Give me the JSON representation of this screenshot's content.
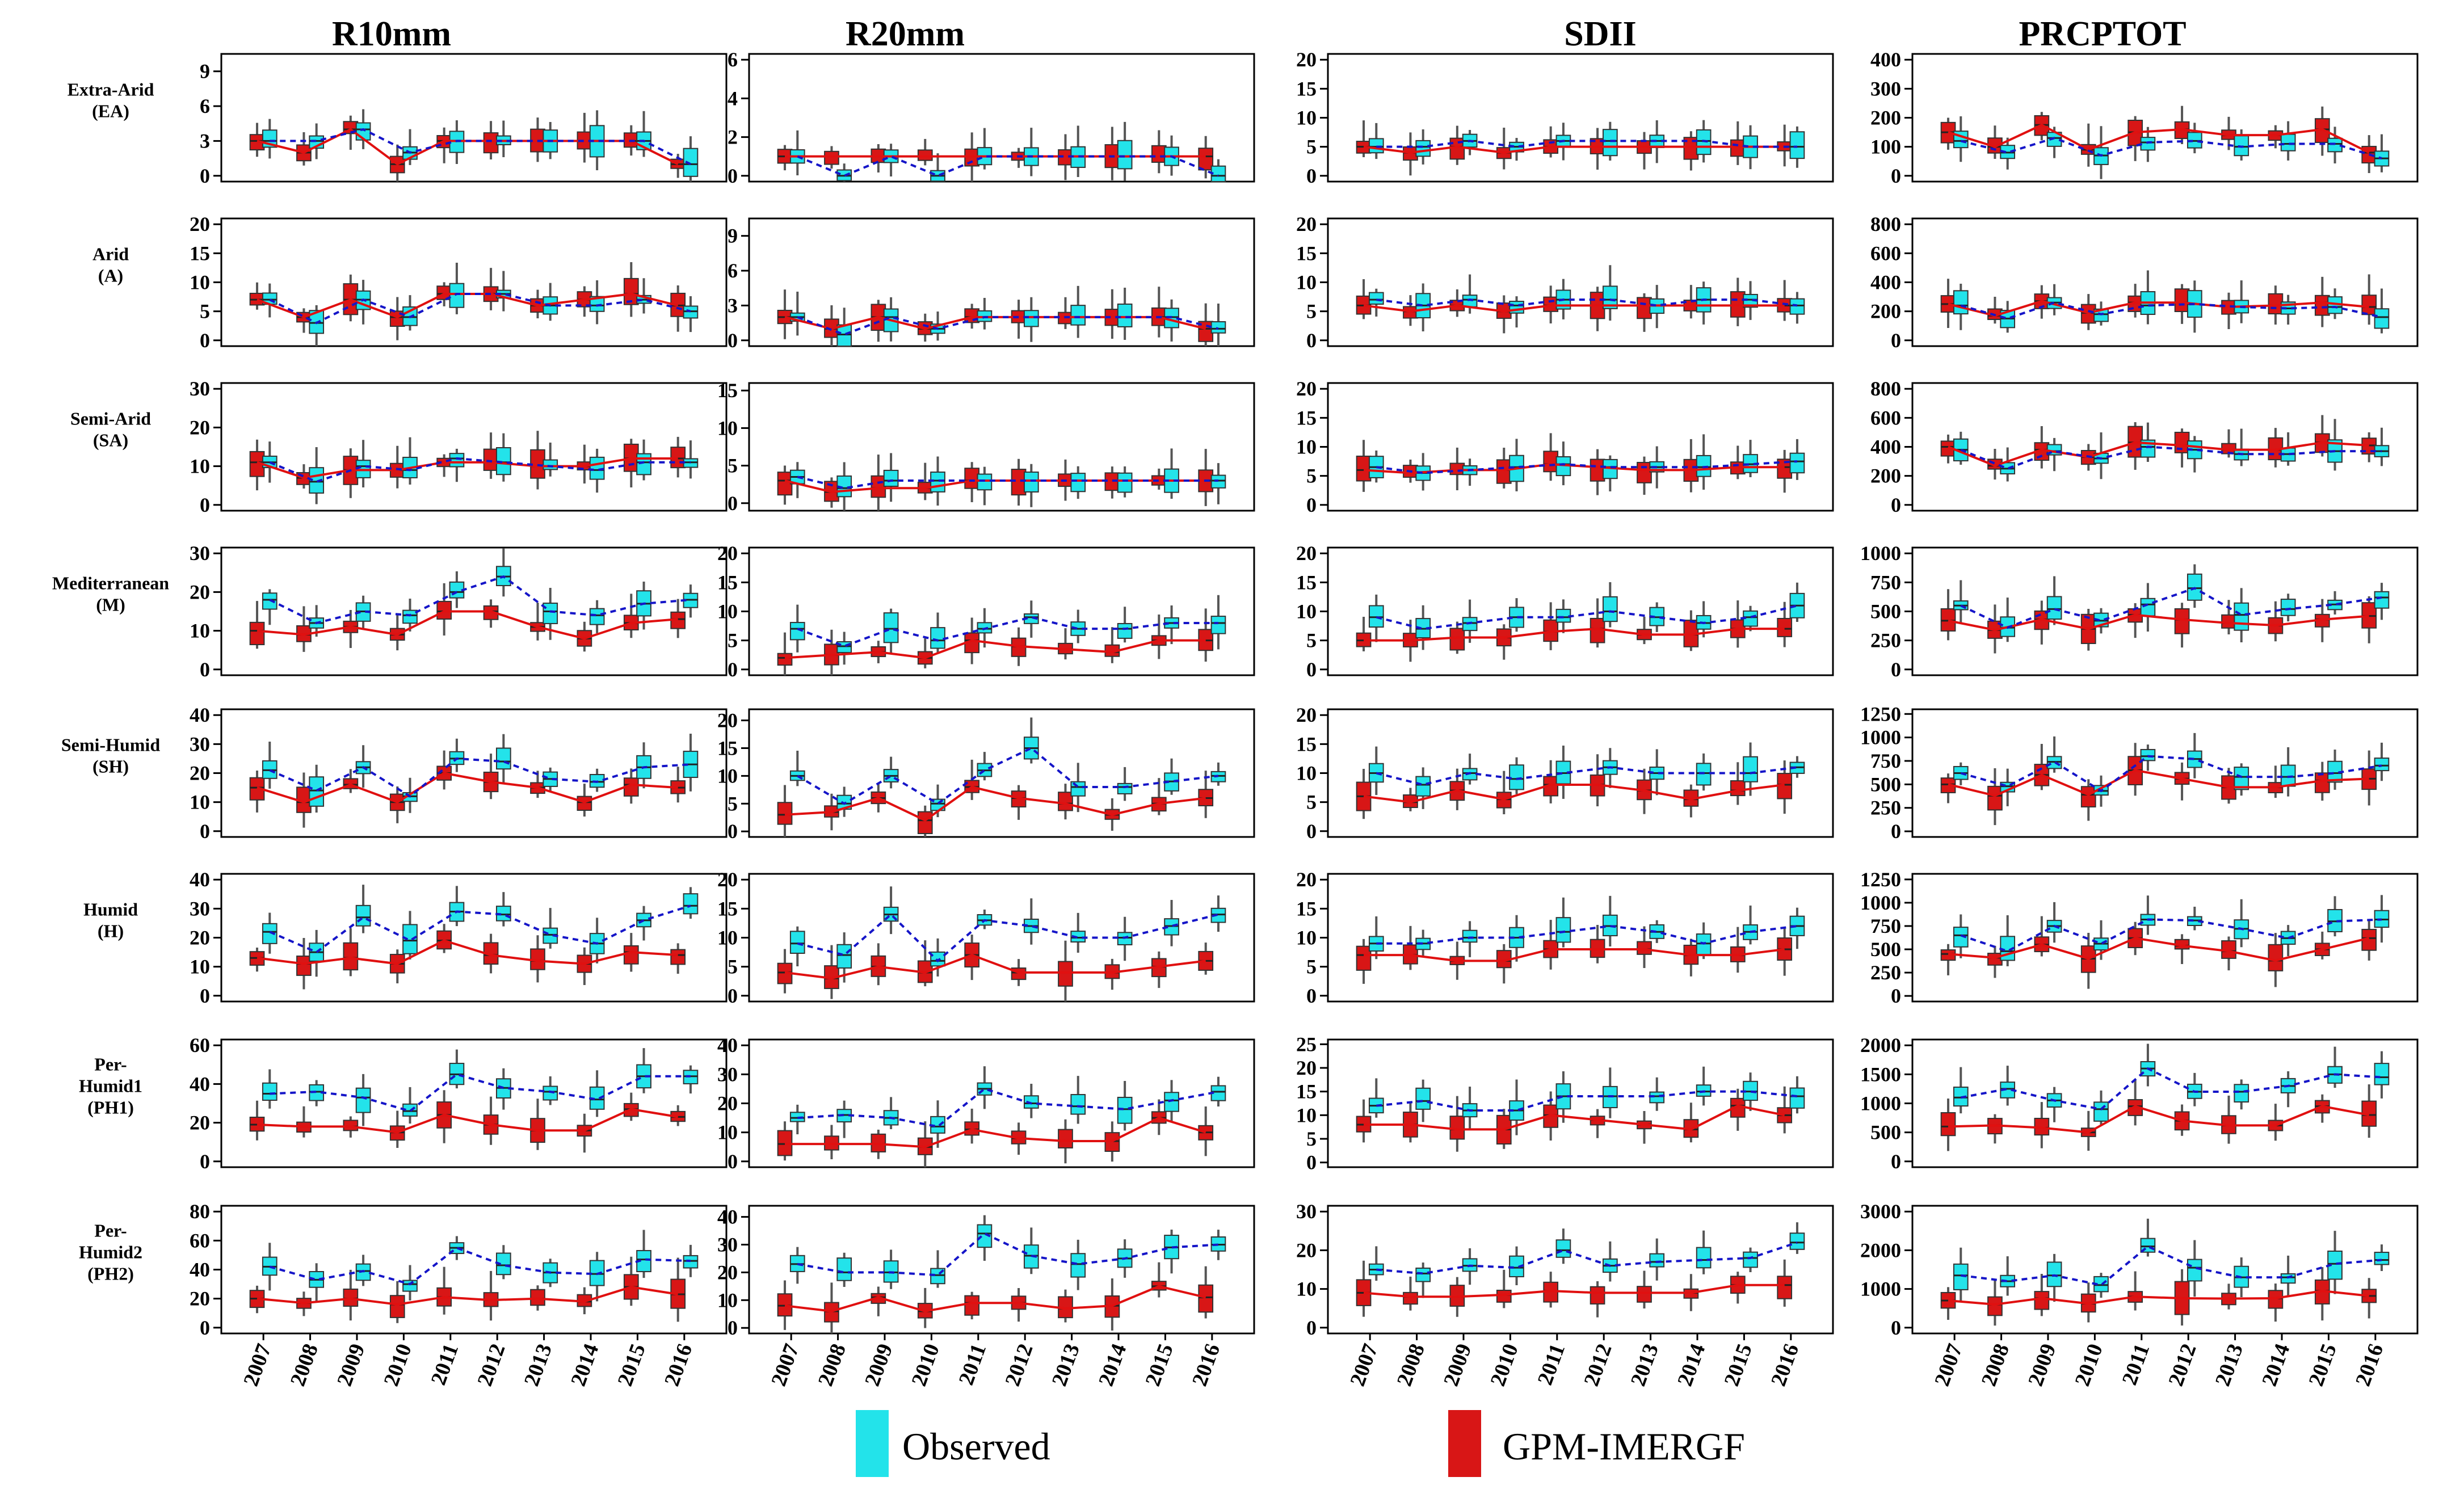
{
  "legend": {
    "observed": "Observed",
    "gpm": "GPM-IMERGF"
  },
  "colors": {
    "observed_fill": "#23e3ea",
    "gpm_fill": "#d81616",
    "observed_line": "#1515c8",
    "gpm_line": "#e01010",
    "whisker": "#555555"
  },
  "chart_data": {
    "type": "boxplot-grid",
    "years": [
      "2007",
      "2008",
      "2009",
      "2010",
      "2011",
      "2012",
      "2013",
      "2014",
      "2015",
      "2016"
    ],
    "columns": [
      {
        "title": "R10mm"
      },
      {
        "title": "R20mm"
      },
      {
        "title": "SDII"
      },
      {
        "title": "PRCPTOT"
      }
    ],
    "rows": [
      {
        "label": [
          "Extra-Arid",
          "(EA)"
        ]
      },
      {
        "label": [
          "Arid",
          "(A)"
        ]
      },
      {
        "label": [
          "Semi-Arid",
          "(SA)"
        ]
      },
      {
        "label": [
          "Mediterranean",
          "(M)"
        ]
      },
      {
        "label": [
          "Semi-Humid",
          "(SH)"
        ]
      },
      {
        "label": [
          "Humid",
          "(H)"
        ]
      },
      {
        "label": [
          "Per-",
          "Humid1",
          "(PH1)"
        ]
      },
      {
        "label": [
          "Per-",
          "Humid2",
          "(PH2)"
        ]
      }
    ],
    "axes": [
      [
        {
          "ticks": [
            0,
            3,
            6,
            9
          ],
          "ylim": [
            -0.5,
            10.5
          ]
        },
        {
          "ticks": [
            0,
            2,
            4,
            6
          ],
          "ylim": [
            -0.3,
            6.3
          ]
        },
        {
          "ticks": [
            0,
            5,
            10,
            15,
            20
          ],
          "ylim": [
            -1,
            21
          ]
        },
        {
          "ticks": [
            0,
            100,
            200,
            300,
            400
          ],
          "ylim": [
            -20,
            420
          ]
        }
      ],
      [
        {
          "ticks": [
            0,
            5,
            10,
            15,
            20
          ],
          "ylim": [
            -1,
            21
          ]
        },
        {
          "ticks": [
            0,
            3,
            6,
            9
          ],
          "ylim": [
            -0.5,
            10.5
          ]
        },
        {
          "ticks": [
            0,
            5,
            10,
            15,
            20
          ],
          "ylim": [
            -1,
            21
          ]
        },
        {
          "ticks": [
            0,
            200,
            400,
            600,
            800
          ],
          "ylim": [
            -40,
            840
          ]
        }
      ],
      [
        {
          "ticks": [
            0,
            10,
            20,
            30
          ],
          "ylim": [
            -1.5,
            31.5
          ]
        },
        {
          "ticks": [
            0,
            5,
            10,
            15
          ],
          "ylim": [
            -1,
            16
          ]
        },
        {
          "ticks": [
            0,
            5,
            10,
            15,
            20
          ],
          "ylim": [
            -1,
            21
          ]
        },
        {
          "ticks": [
            0,
            200,
            400,
            600,
            800
          ],
          "ylim": [
            -40,
            840
          ]
        }
      ],
      [
        {
          "ticks": [
            0,
            10,
            20,
            30
          ],
          "ylim": [
            -1.5,
            31.5
          ]
        },
        {
          "ticks": [
            0,
            5,
            10,
            15,
            20
          ],
          "ylim": [
            -1,
            21
          ]
        },
        {
          "ticks": [
            0,
            5,
            10,
            15,
            20
          ],
          "ylim": [
            -1,
            21
          ]
        },
        {
          "ticks": [
            0,
            250,
            500,
            750,
            1000
          ],
          "ylim": [
            -50,
            1050
          ]
        }
      ],
      [
        {
          "ticks": [
            0,
            10,
            20,
            30,
            40
          ],
          "ylim": [
            -2,
            42
          ]
        },
        {
          "ticks": [
            0,
            5,
            10,
            15,
            20
          ],
          "ylim": [
            -1,
            22
          ]
        },
        {
          "ticks": [
            0,
            5,
            10,
            15,
            20
          ],
          "ylim": [
            -1,
            21
          ]
        },
        {
          "ticks": [
            0,
            250,
            500,
            750,
            1000,
            1250
          ],
          "ylim": [
            -60,
            1300
          ]
        }
      ],
      [
        {
          "ticks": [
            0,
            10,
            20,
            30,
            40
          ],
          "ylim": [
            -2,
            42
          ]
        },
        {
          "ticks": [
            0,
            5,
            10,
            15,
            20
          ],
          "ylim": [
            -1,
            21
          ]
        },
        {
          "ticks": [
            0,
            5,
            10,
            15,
            20
          ],
          "ylim": [
            -1,
            21
          ]
        },
        {
          "ticks": [
            0,
            250,
            500,
            750,
            1000,
            1250
          ],
          "ylim": [
            -60,
            1310
          ]
        }
      ],
      [
        {
          "ticks": [
            0,
            20,
            40,
            60
          ],
          "ylim": [
            -3,
            63
          ]
        },
        {
          "ticks": [
            0,
            10,
            20,
            30,
            40
          ],
          "ylim": [
            -2,
            42
          ]
        },
        {
          "ticks": [
            0,
            5,
            10,
            15,
            20,
            25
          ],
          "ylim": [
            -1,
            26
          ]
        },
        {
          "ticks": [
            0,
            500,
            1000,
            1500,
            2000
          ],
          "ylim": [
            -100,
            2100
          ]
        }
      ],
      [
        {
          "ticks": [
            0,
            20,
            40,
            60,
            80
          ],
          "ylim": [
            -4,
            84
          ]
        },
        {
          "ticks": [
            0,
            10,
            20,
            30,
            40
          ],
          "ylim": [
            -2,
            44
          ]
        },
        {
          "ticks": [
            0,
            10,
            20,
            30
          ],
          "ylim": [
            -1.5,
            31.5
          ]
        },
        {
          "ticks": [
            0,
            1000,
            2000,
            3000
          ],
          "ylim": [
            -150,
            3150
          ]
        }
      ]
    ],
    "observed_medians": [
      [
        [
          3,
          3,
          4,
          2,
          3,
          3,
          3,
          3,
          3,
          1
        ],
        [
          1,
          0,
          1,
          0,
          1,
          1,
          1,
          1,
          1,
          0
        ],
        [
          5,
          5,
          6,
          5,
          6,
          6,
          6,
          6,
          5,
          5
        ],
        [
          120,
          80,
          130,
          70,
          115,
          120,
          100,
          110,
          110,
          60
        ]
      ],
      [
        [
          7,
          3,
          7,
          4,
          8,
          8,
          6,
          6,
          7,
          5
        ],
        [
          2,
          0.5,
          2,
          1,
          2,
          2,
          2,
          2,
          2,
          1
        ],
        [
          7,
          6,
          7,
          6,
          7,
          7,
          6,
          7,
          7,
          6
        ],
        [
          240,
          150,
          260,
          180,
          240,
          250,
          230,
          220,
          230,
          160
        ]
      ],
      [
        [
          11,
          6,
          10,
          9,
          12,
          11,
          10,
          9,
          11,
          11
        ],
        [
          3.5,
          2,
          3,
          3,
          3,
          3,
          3,
          3,
          3,
          3
        ],
        [
          6.5,
          5.5,
          6,
          6.5,
          7,
          6.5,
          6.5,
          6.5,
          7,
          7.5
        ],
        [
          380,
          250,
          370,
          320,
          400,
          380,
          350,
          350,
          370,
          370
        ]
      ],
      [
        [
          18,
          12,
          15,
          14,
          20,
          24,
          15,
          14,
          17,
          18
        ],
        [
          7,
          4,
          7,
          5,
          7,
          9,
          7,
          7,
          8,
          8
        ],
        [
          9,
          7,
          8,
          9,
          9,
          10,
          9,
          8,
          9,
          11
        ],
        [
          550,
          360,
          520,
          420,
          560,
          700,
          470,
          520,
          560,
          620
        ]
      ],
      [
        [
          21,
          14,
          22,
          12,
          25,
          24,
          18,
          17,
          22,
          23
        ],
        [
          10,
          5,
          10,
          5,
          11,
          15,
          8,
          8,
          9,
          10
        ],
        [
          10,
          8,
          10,
          9,
          10,
          11,
          10,
          10,
          10,
          11
        ],
        [
          620,
          480,
          740,
          430,
          800,
          770,
          580,
          580,
          620,
          700
        ]
      ],
      [
        [
          22,
          15,
          27,
          19,
          29,
          28,
          21,
          18,
          26,
          31
        ],
        [
          9,
          7,
          14,
          6,
          13,
          12,
          10,
          10,
          12,
          14
        ],
        [
          9,
          9,
          10,
          10,
          11,
          12,
          11,
          9,
          11,
          12
        ],
        [
          650,
          480,
          750,
          560,
          820,
          810,
          720,
          620,
          800,
          820
        ]
      ],
      [
        [
          35,
          36,
          33,
          26,
          45,
          38,
          36,
          32,
          44,
          44
        ],
        [
          15,
          16,
          15,
          12,
          25,
          20,
          19,
          18,
          21,
          24
        ],
        [
          12,
          13,
          11,
          11,
          14,
          14,
          14,
          15,
          15,
          14
        ],
        [
          1100,
          1250,
          1050,
          900,
          1600,
          1200,
          1200,
          1300,
          1500,
          1450
        ]
      ],
      [
        [
          42,
          33,
          39,
          30,
          55,
          43,
          38,
          37,
          47,
          46
        ],
        [
          23,
          20,
          20,
          19,
          34,
          26,
          23,
          25,
          29,
          30
        ],
        [
          15,
          14,
          16,
          15.5,
          20,
          16,
          17,
          17.5,
          18,
          22
        ],
        [
          1350,
          1200,
          1350,
          1100,
          2100,
          1550,
          1300,
          1300,
          1650,
          1750
        ]
      ]
    ],
    "gpm_medians": [
      [
        [
          3,
          2,
          4,
          1,
          3,
          3,
          3,
          3,
          3,
          1
        ],
        [
          1,
          1,
          1,
          1,
          1,
          1,
          1,
          1,
          1,
          1
        ],
        [
          5,
          4,
          5,
          4,
          5,
          5,
          5,
          5,
          5,
          5
        ],
        [
          150,
          100,
          175,
          90,
          150,
          160,
          140,
          140,
          160,
          80
        ]
      ],
      [
        [
          7,
          4,
          7,
          4,
          8,
          8,
          6,
          7,
          8,
          6
        ],
        [
          2,
          1,
          2,
          1,
          2,
          2,
          2,
          2,
          2,
          1
        ],
        [
          6,
          5,
          6,
          5,
          6,
          6,
          6,
          6,
          6,
          6
        ],
        [
          250,
          170,
          270,
          190,
          260,
          260,
          230,
          240,
          260,
          230
        ]
      ],
      [
        [
          11,
          7,
          9,
          9,
          11,
          11,
          10,
          10,
          12,
          12
        ],
        [
          3,
          1.5,
          2,
          2,
          3,
          3,
          3,
          3,
          3,
          3
        ],
        [
          6,
          5.5,
          6,
          6,
          7,
          6.5,
          6,
          6,
          6.5,
          6.5
        ],
        [
          400,
          270,
          380,
          330,
          430,
          410,
          380,
          380,
          430,
          410
        ]
      ],
      [
        [
          10,
          9,
          11,
          9,
          15,
          15,
          11,
          8,
          12,
          13
        ],
        [
          2,
          2.5,
          3,
          2,
          5,
          4,
          3.5,
          3,
          5,
          5
        ],
        [
          5,
          5,
          5.5,
          5.5,
          6.5,
          7,
          6,
          6,
          7,
          7
        ],
        [
          420,
          340,
          430,
          350,
          470,
          430,
          400,
          380,
          430,
          460
        ]
      ],
      [
        [
          15,
          10,
          16,
          10,
          20,
          17,
          15,
          10,
          16,
          15
        ],
        [
          3,
          3.5,
          6,
          2,
          8,
          6,
          5,
          3,
          5,
          6
        ],
        [
          6,
          5,
          7,
          5.5,
          8,
          8,
          7,
          5.5,
          7,
          8
        ],
        [
          500,
          380,
          600,
          390,
          650,
          560,
          470,
          470,
          540,
          560
        ]
      ],
      [
        [
          13,
          11,
          13,
          11,
          19,
          14,
          12,
          11,
          15,
          14
        ],
        [
          4,
          3,
          5,
          4,
          7,
          4,
          4,
          4,
          5,
          6
        ],
        [
          7,
          7,
          6,
          6,
          8,
          8,
          8,
          7,
          7,
          8
        ],
        [
          450,
          410,
          550,
          400,
          620,
          540,
          480,
          380,
          500,
          620
        ]
      ],
      [
        [
          19,
          18,
          18,
          15,
          24,
          19,
          16,
          16,
          27,
          23
        ],
        [
          6,
          6,
          6,
          5,
          11,
          8,
          7,
          7,
          15,
          10
        ],
        [
          8,
          8,
          7,
          7,
          10,
          9,
          8,
          7,
          12,
          10
        ],
        [
          600,
          620,
          580,
          500,
          950,
          700,
          620,
          620,
          950,
          800
        ]
      ],
      [
        [
          20,
          17,
          20,
          16,
          21,
          19,
          20,
          18,
          28,
          23
        ],
        [
          8,
          6,
          11,
          6,
          9,
          9,
          7,
          8,
          15,
          11
        ],
        [
          9,
          8,
          8,
          8.5,
          9.5,
          9,
          9,
          9,
          11,
          11
        ],
        [
          700,
          600,
          760,
          620,
          800,
          760,
          750,
          760,
          950,
          820
        ]
      ]
    ]
  }
}
